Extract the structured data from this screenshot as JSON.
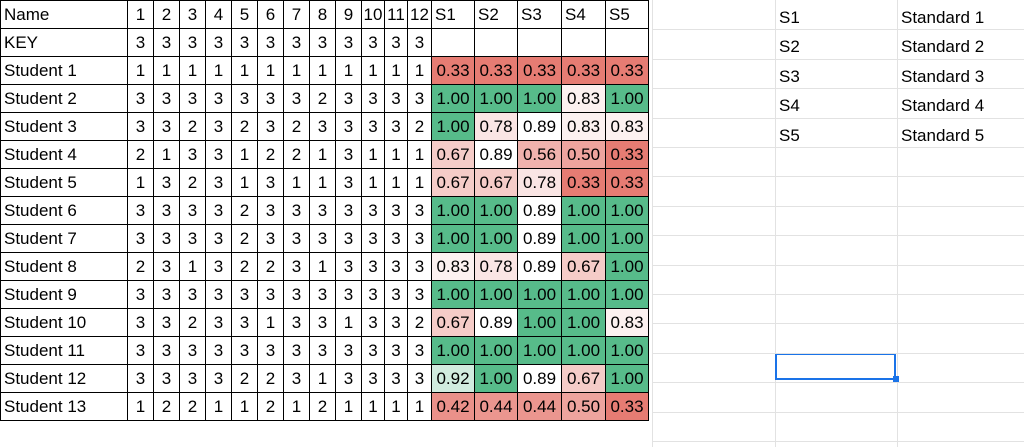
{
  "sheet": {
    "header": [
      "Name",
      "1",
      "2",
      "3",
      "4",
      "5",
      "6",
      "7",
      "8",
      "9",
      "10",
      "11",
      "12",
      "S1",
      "S2",
      "S3",
      "S4",
      "S5"
    ],
    "rows": [
      {
        "name": "KEY",
        "answers": [
          "3",
          "3",
          "3",
          "3",
          "3",
          "3",
          "3",
          "3",
          "3",
          "3",
          "3",
          "3"
        ],
        "scores": [
          "",
          "",
          "",
          "",
          ""
        ]
      },
      {
        "name": "Student 1",
        "answers": [
          "1",
          "1",
          "1",
          "1",
          "1",
          "1",
          "1",
          "1",
          "1",
          "1",
          "1",
          "1"
        ],
        "scores": [
          "0.33",
          "0.33",
          "0.33",
          "0.33",
          "0.33"
        ]
      },
      {
        "name": "Student 2",
        "answers": [
          "3",
          "3",
          "3",
          "3",
          "3",
          "3",
          "3",
          "2",
          "3",
          "3",
          "3",
          "3"
        ],
        "scores": [
          "1.00",
          "1.00",
          "1.00",
          "0.83",
          "1.00"
        ]
      },
      {
        "name": "Student 3",
        "answers": [
          "3",
          "3",
          "2",
          "3",
          "2",
          "3",
          "2",
          "3",
          "3",
          "3",
          "3",
          "2"
        ],
        "scores": [
          "1.00",
          "0.78",
          "0.89",
          "0.83",
          "0.83"
        ]
      },
      {
        "name": "Student 4",
        "answers": [
          "2",
          "1",
          "3",
          "3",
          "1",
          "2",
          "2",
          "1",
          "3",
          "1",
          "1",
          "1"
        ],
        "scores": [
          "0.67",
          "0.89",
          "0.56",
          "0.50",
          "0.33"
        ]
      },
      {
        "name": "Student 5",
        "answers": [
          "1",
          "3",
          "2",
          "3",
          "1",
          "3",
          "1",
          "1",
          "3",
          "1",
          "1",
          "1"
        ],
        "scores": [
          "0.67",
          "0.67",
          "0.78",
          "0.33",
          "0.33"
        ]
      },
      {
        "name": "Student 6",
        "answers": [
          "3",
          "3",
          "3",
          "3",
          "2",
          "3",
          "3",
          "3",
          "3",
          "3",
          "3",
          "3"
        ],
        "scores": [
          "1.00",
          "1.00",
          "0.89",
          "1.00",
          "1.00"
        ]
      },
      {
        "name": "Student 7",
        "answers": [
          "3",
          "3",
          "3",
          "3",
          "2",
          "3",
          "3",
          "3",
          "3",
          "3",
          "3",
          "3"
        ],
        "scores": [
          "1.00",
          "1.00",
          "0.89",
          "1.00",
          "1.00"
        ]
      },
      {
        "name": "Student 8",
        "answers": [
          "2",
          "3",
          "1",
          "3",
          "2",
          "2",
          "3",
          "1",
          "3",
          "3",
          "3",
          "3"
        ],
        "scores": [
          "0.83",
          "0.78",
          "0.89",
          "0.67",
          "1.00"
        ]
      },
      {
        "name": "Student 9",
        "answers": [
          "3",
          "3",
          "3",
          "3",
          "3",
          "3",
          "3",
          "3",
          "3",
          "3",
          "3",
          "3"
        ],
        "scores": [
          "1.00",
          "1.00",
          "1.00",
          "1.00",
          "1.00"
        ]
      },
      {
        "name": "Student 10",
        "answers": [
          "3",
          "3",
          "2",
          "3",
          "3",
          "1",
          "3",
          "3",
          "1",
          "3",
          "3",
          "2"
        ],
        "scores": [
          "0.67",
          "0.89",
          "1.00",
          "1.00",
          "0.83"
        ]
      },
      {
        "name": "Student 11",
        "answers": [
          "3",
          "3",
          "3",
          "3",
          "3",
          "3",
          "3",
          "3",
          "3",
          "3",
          "3",
          "3"
        ],
        "scores": [
          "1.00",
          "1.00",
          "1.00",
          "1.00",
          "1.00"
        ]
      },
      {
        "name": "Student 12",
        "answers": [
          "3",
          "3",
          "3",
          "3",
          "2",
          "2",
          "3",
          "1",
          "3",
          "3",
          "3",
          "3"
        ],
        "scores": [
          "0.92",
          "1.00",
          "0.89",
          "0.67",
          "1.00"
        ]
      },
      {
        "name": "Student 13",
        "answers": [
          "1",
          "2",
          "2",
          "1",
          "1",
          "2",
          "1",
          "2",
          "1",
          "1",
          "1",
          "1"
        ],
        "scores": [
          "0.42",
          "0.44",
          "0.44",
          "0.50",
          "0.33"
        ]
      }
    ]
  },
  "standards": [
    {
      "code": "S1",
      "label": "Standard 1"
    },
    {
      "code": "S2",
      "label": "Standard 2"
    },
    {
      "code": "S3",
      "label": "Standard 3"
    },
    {
      "code": "S4",
      "label": "Standard 4"
    },
    {
      "code": "S5",
      "label": "Standard 5"
    }
  ],
  "colors": {
    "low": "#e67c73",
    "mid": "#ffffff",
    "high": "#57bb8a",
    "grid_border": "#000000",
    "selection": "#1a73e8"
  }
}
